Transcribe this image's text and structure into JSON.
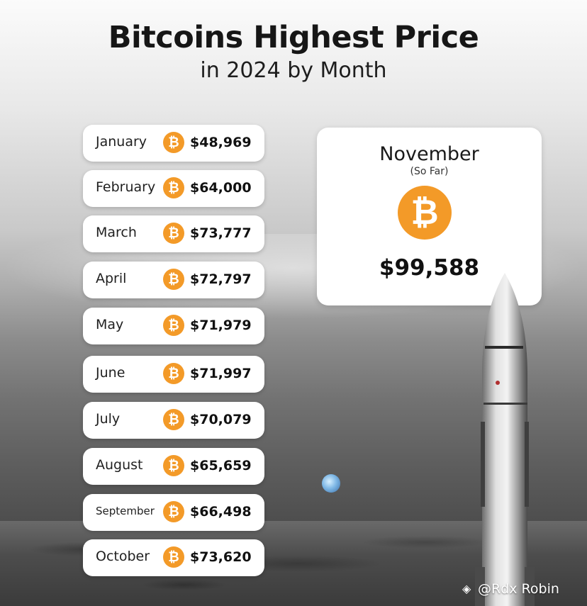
{
  "header": {
    "title": "Bitcoins Highest Price",
    "subtitle": "in 2024 by Month"
  },
  "coin_symbol": "₿",
  "months": [
    {
      "month": "January",
      "price": "$48,969"
    },
    {
      "month": "February",
      "price": "$64,000"
    },
    {
      "month": "March",
      "price": "$73,777"
    },
    {
      "month": "April",
      "price": "$72,797"
    },
    {
      "month": "May",
      "price": "$71,979"
    },
    {
      "month": "June",
      "price": "$71,997"
    },
    {
      "month": "July",
      "price": "$70,079"
    },
    {
      "month": "August",
      "price": "$65,659"
    },
    {
      "month": "September",
      "price": "$66,498"
    },
    {
      "month": "October",
      "price": "$73,620"
    }
  ],
  "highlight": {
    "month": "November",
    "note": "(So Far)",
    "price": "$99,588"
  },
  "watermark": {
    "text": "@Rdx Robin",
    "icon": "binance-square-icon"
  },
  "colors": {
    "bitcoin_orange": "#f39a28",
    "card_background": "#ffffff",
    "text_dark": "#111111"
  }
}
